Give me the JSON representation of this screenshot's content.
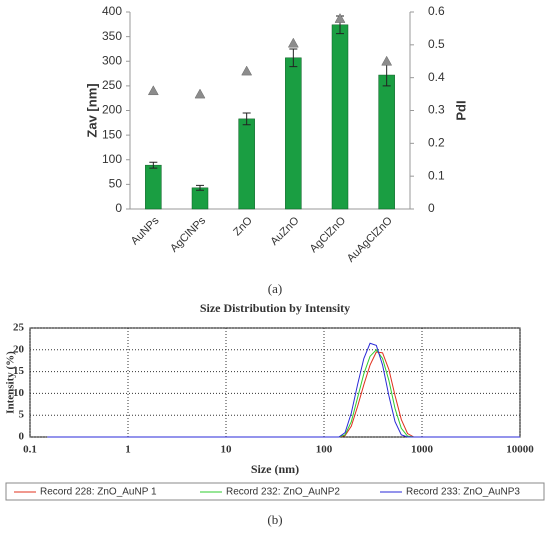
{
  "chart_data": [
    {
      "type": "bar",
      "categories": [
        "AuNPs",
        "AgClNPs",
        "ZnO",
        "AuZnO",
        "AgClZnO",
        "AuAgClZnO"
      ],
      "ylabel": "Zav [nm]",
      "y2label": "PdI",
      "ylim": [
        0,
        400
      ],
      "yticks": [
        0,
        50,
        100,
        150,
        200,
        250,
        300,
        350,
        400
      ],
      "y2lim": [
        0,
        0.6
      ],
      "y2ticks": [
        0,
        0.1,
        0.2,
        0.3,
        0.4,
        0.5,
        0.6
      ],
      "series": [
        {
          "color": "#1a9e42",
          "values": [
            89,
            43,
            183,
            307,
            374,
            272
          ],
          "errors": [
            6,
            5,
            12,
            18,
            18,
            22
          ]
        },
        {
          "color": "#8c8c8c",
          "marker": "triangle",
          "axis": "y2",
          "values": [
            0.36,
            0.35,
            0.42,
            0.505,
            0.58,
            0.45
          ]
        }
      ],
      "caption": "(a)"
    },
    {
      "type": "line",
      "log_x": true,
      "grid": true,
      "title": "Size Distribution by Intensity",
      "xlabel": "Size (nm)",
      "ylabel": "Intensity (%)",
      "xlim": [
        0.1,
        10000
      ],
      "xticks": [
        0.1,
        1,
        10,
        100,
        1000,
        10000
      ],
      "ylim": [
        0,
        25
      ],
      "yticks": [
        0,
        5,
        10,
        15,
        20,
        25
      ],
      "x": [
        0.15,
        1,
        10,
        100,
        142,
        164,
        190,
        220,
        255,
        295,
        342,
        396,
        459,
        531,
        615,
        712,
        825,
        1000,
        10000
      ],
      "series": [
        {
          "name": "Record 228: ZnO_AuNP 1",
          "color": "#e0301e",
          "values": [
            0,
            0,
            0,
            0,
            0,
            0.3,
            2.5,
            7,
            12,
            16.5,
            19.5,
            19.3,
            15.5,
            9.5,
            4,
            0.8,
            0,
            0,
            0
          ]
        },
        {
          "name": "Record 232: ZnO_AuNP2",
          "color": "#2ecc2e",
          "values": [
            0,
            0,
            0,
            0,
            0,
            0.5,
            3.5,
            9,
            14.5,
            18.5,
            20,
            18,
            13,
            6.5,
            2,
            0.2,
            0,
            0,
            0
          ]
        },
        {
          "name": "Record 233: ZnO_AuNP3",
          "color": "#2a2ad8",
          "values": [
            0,
            0,
            0,
            0,
            0,
            1,
            5.5,
            12,
            18,
            21.5,
            21,
            16.5,
            9.5,
            3.5,
            0.5,
            0,
            0,
            0,
            0
          ]
        }
      ],
      "caption": "(b)"
    }
  ]
}
